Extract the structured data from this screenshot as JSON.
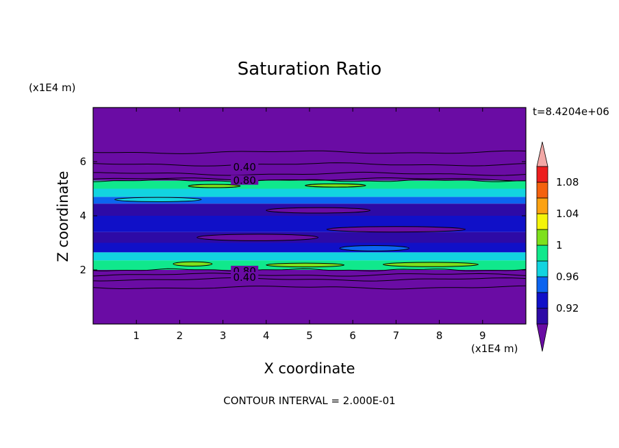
{
  "chart_data": {
    "type": "heatmap",
    "title": "Saturation Ratio",
    "xlabel": "X coordinate",
    "ylabel": "Z coordinate",
    "x_unit": "(x1E4 m)",
    "y_unit": "(x1E4 m)",
    "xlim": [
      0,
      10
    ],
    "ylim": [
      0,
      8
    ],
    "x_ticks": [
      "1",
      "2",
      "3",
      "4",
      "5",
      "6",
      "7",
      "8",
      "9"
    ],
    "y_ticks": [
      "2",
      "4",
      "6"
    ],
    "time_label": "t=8.4204e+06",
    "contour_labels": [
      "0.40",
      "0.80",
      "0.80",
      "0.40"
    ],
    "colorbar_labels": [
      "1.08",
      "1.04",
      "1",
      "0.96",
      "0.92"
    ],
    "colorbar_colors": [
      "#6a0ca4",
      "#2d0aa6",
      "#1010c8",
      "#0c64f0",
      "#12d4e0",
      "#10e88c",
      "#7ee01c",
      "#f4f40a",
      "#fca212",
      "#f4620e",
      "#ec1e1e",
      "#f2a8a6"
    ],
    "footer": "CONTOUR INTERVAL = 2.000E-01",
    "bands": [
      {
        "z0": 0.0,
        "z1": 2.0,
        "color": "#6a0ca4"
      },
      {
        "z0": 2.0,
        "z1": 2.35,
        "color": "#10e88c"
      },
      {
        "z0": 2.35,
        "z1": 2.65,
        "color": "#12d4e0"
      },
      {
        "z0": 2.65,
        "z1": 3.0,
        "color": "#1010c8"
      },
      {
        "z0": 3.0,
        "z1": 3.4,
        "color": "#2d0aa6"
      },
      {
        "z0": 3.4,
        "z1": 4.0,
        "color": "#1010c8"
      },
      {
        "z0": 4.0,
        "z1": 4.45,
        "color": "#2d0aa6"
      },
      {
        "z0": 4.45,
        "z1": 4.7,
        "color": "#0c64f0"
      },
      {
        "z0": 4.7,
        "z1": 5.0,
        "color": "#12d4e0"
      },
      {
        "z0": 5.0,
        "z1": 5.3,
        "color": "#10e88c"
      },
      {
        "z0": 5.3,
        "z1": 8.0,
        "color": "#6a0ca4"
      }
    ],
    "contour_lines_z": [
      1.35,
      1.65,
      1.82,
      5.35,
      5.55,
      5.9,
      6.35
    ]
  }
}
